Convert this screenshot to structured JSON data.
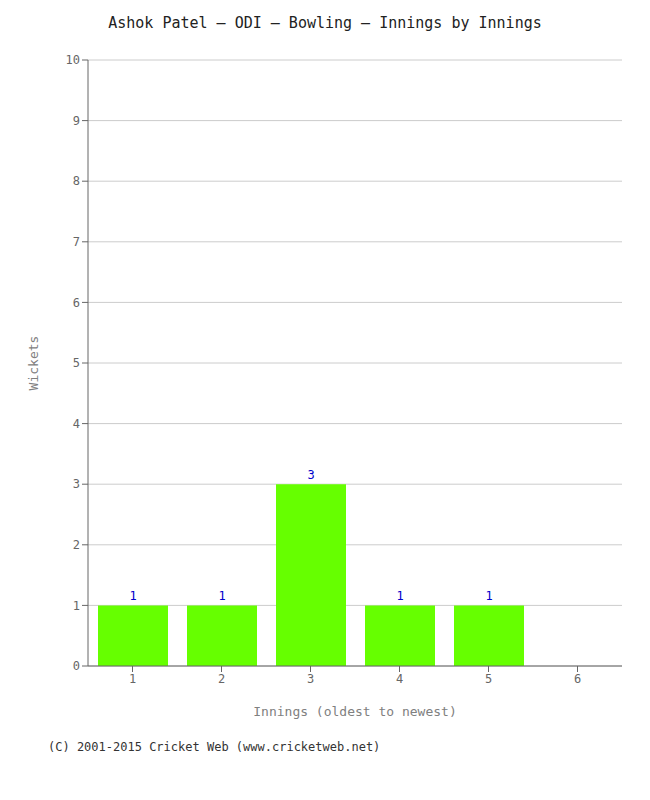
{
  "chart_data": {
    "type": "bar",
    "title": "Ashok Patel – ODI – Bowling – Innings by Innings",
    "xlabel": "Innings (oldest to newest)",
    "ylabel": "Wickets",
    "categories": [
      "1",
      "2",
      "3",
      "4",
      "5",
      "6"
    ],
    "values": [
      1,
      1,
      3,
      1,
      1,
      0
    ],
    "color": "#66ff00",
    "ylim": [
      0,
      10
    ],
    "yticks": [
      0,
      1,
      2,
      3,
      4,
      5,
      6,
      7,
      8,
      9,
      10
    ],
    "grid": true,
    "data_labels": true,
    "annotations": [
      "(C) 2001-2015 Cricket Web (www.cricketweb.net)"
    ]
  }
}
